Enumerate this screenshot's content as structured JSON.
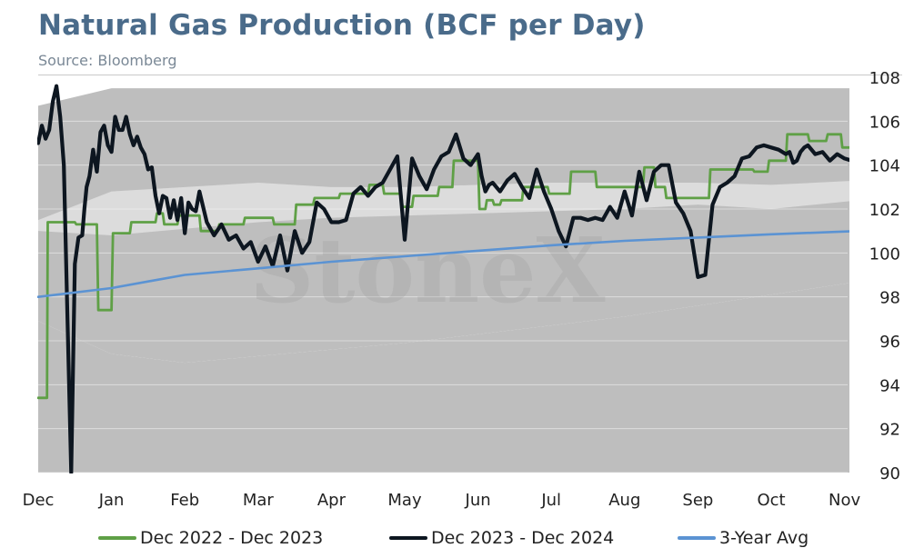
{
  "header": {
    "title": "Natural Gas Production (BCF per Day)",
    "subtitle": "Source: Bloomberg"
  },
  "watermark": {
    "text": "StoneX"
  },
  "legend": {
    "items": [
      {
        "label": "Dec 2022 - Dec 2023",
        "color": "#5fa046"
      },
      {
        "label": "Dec 2023 - Dec 2024",
        "color": "#0d1620"
      },
      {
        "label": "3-Year Avg",
        "color": "#5b93d3"
      }
    ]
  },
  "chart_data": {
    "type": "line",
    "title": "Natural Gas Production (BCF per Day)",
    "xlabel": "",
    "ylabel": "",
    "ylim": [
      90,
      108
    ],
    "yticks": [
      90,
      92,
      94,
      96,
      98,
      100,
      102,
      104,
      106,
      108
    ],
    "y_axis_position": "right",
    "x_categories": [
      "Dec",
      "Jan",
      "Feb",
      "Mar",
      "Apr",
      "May",
      "Jun",
      "Jul",
      "Aug",
      "Sep",
      "Oct",
      "Nov"
    ],
    "grid": true,
    "legend_position": "bottom",
    "bands": {
      "outer_color": "#bebebe",
      "inner_color": "#dcdcdc",
      "x": [
        0,
        1,
        2,
        3,
        4,
        5,
        6,
        7,
        8,
        9,
        10,
        11.2
      ],
      "outer_upper": [
        106.7,
        107.5,
        107.5,
        107.5,
        107.5,
        107.5,
        107.5,
        107.5,
        107.5,
        107.5,
        107.5,
        107.5
      ],
      "inner_upper": [
        101.5,
        102.8,
        103.0,
        103.2,
        103.0,
        103.0,
        103.1,
        103.2,
        103.2,
        103.2,
        103.1,
        103.3
      ],
      "inner_lower": [
        101.0,
        100.8,
        101.1,
        101.4,
        101.6,
        101.7,
        101.8,
        101.9,
        102.0,
        102.2,
        102.0,
        102.4
      ],
      "outer_lower": [
        96.9,
        95.4,
        95.0,
        95.3,
        95.6,
        95.9,
        96.3,
        96.7,
        97.1,
        97.6,
        98.1,
        98.7
      ]
    },
    "series": [
      {
        "name": "Dec 2022 - Dec 2023",
        "color": "#5fa046",
        "x": [
          0,
          0.12,
          0.13,
          0.5,
          0.52,
          0.8,
          0.82,
          1.0,
          1.02,
          1.25,
          1.27,
          1.6,
          1.62,
          1.7,
          1.72,
          1.9,
          1.92,
          2.2,
          2.22,
          2.45,
          2.47,
          2.8,
          2.82,
          3.2,
          3.22,
          3.5,
          3.52,
          3.75,
          3.77,
          4.1,
          4.12,
          4.5,
          4.52,
          4.7,
          4.72,
          4.95,
          4.97,
          5.1,
          5.12,
          5.45,
          5.47,
          5.65,
          5.67,
          6.0,
          6.02,
          6.1,
          6.12,
          6.2,
          6.22,
          6.3,
          6.32,
          6.6,
          6.62,
          6.95,
          6.97,
          7.25,
          7.27,
          7.6,
          7.62,
          7.8,
          7.82,
          8.25,
          8.27,
          8.4,
          8.42,
          8.55,
          8.57,
          8.95,
          8.97,
          9.15,
          9.17,
          9.45,
          9.47,
          9.75,
          9.77,
          9.95,
          9.97,
          10.2,
          10.22,
          10.5,
          10.52,
          10.75,
          10.77,
          10.95,
          10.97,
          11.15,
          11.17,
          11.2
        ],
        "values": [
          93.4,
          93.4,
          101.4,
          101.4,
          101.3,
          101.3,
          97.4,
          97.4,
          100.9,
          100.9,
          101.4,
          101.4,
          101.8,
          101.8,
          101.3,
          101.3,
          101.7,
          101.7,
          101.0,
          101.0,
          101.3,
          101.3,
          101.6,
          101.6,
          101.3,
          101.3,
          102.2,
          102.2,
          102.5,
          102.5,
          102.7,
          102.7,
          103.1,
          103.1,
          102.7,
          102.7,
          102.1,
          102.1,
          102.6,
          102.6,
          103.0,
          103.0,
          104.2,
          104.2,
          102.0,
          102.0,
          102.4,
          102.4,
          102.2,
          102.2,
          102.4,
          102.4,
          103.0,
          103.0,
          102.7,
          102.7,
          103.7,
          103.7,
          103.0,
          103.0,
          103.0,
          103.0,
          103.9,
          103.9,
          103.0,
          103.0,
          102.5,
          102.5,
          102.5,
          102.5,
          103.8,
          103.8,
          103.8,
          103.8,
          103.7,
          103.7,
          104.2,
          104.2,
          105.4,
          105.4,
          105.1,
          105.1,
          105.4,
          105.4,
          104.8,
          104.8,
          105.5,
          105.5
        ]
      },
      {
        "name": "Dec 2023 - Dec 2024",
        "color": "#0d1620",
        "x": [
          0,
          0.05,
          0.1,
          0.15,
          0.2,
          0.25,
          0.3,
          0.35,
          0.4,
          0.45,
          0.5,
          0.55,
          0.6,
          0.63,
          0.66,
          0.7,
          0.75,
          0.8,
          0.85,
          0.9,
          0.95,
          1.0,
          1.05,
          1.1,
          1.15,
          1.2,
          1.25,
          1.3,
          1.35,
          1.4,
          1.45,
          1.5,
          1.55,
          1.6,
          1.65,
          1.7,
          1.75,
          1.8,
          1.85,
          1.9,
          1.95,
          2.0,
          2.05,
          2.1,
          2.15,
          2.2,
          2.3,
          2.4,
          2.5,
          2.6,
          2.7,
          2.8,
          2.9,
          3.0,
          3.1,
          3.2,
          3.3,
          3.4,
          3.5,
          3.6,
          3.7,
          3.8,
          3.9,
          4.0,
          4.1,
          4.2,
          4.3,
          4.4,
          4.5,
          4.6,
          4.7,
          4.8,
          4.9,
          5.0,
          5.1,
          5.2,
          5.3,
          5.4,
          5.5,
          5.6,
          5.7,
          5.8,
          5.9,
          6.0,
          6.05,
          6.1,
          6.15,
          6.2,
          6.3,
          6.4,
          6.5,
          6.6,
          6.7,
          6.8,
          6.9,
          7.0,
          7.1,
          7.2,
          7.3,
          7.4,
          7.5,
          7.6,
          7.7,
          7.8,
          7.9,
          8.0,
          8.1,
          8.2,
          8.3,
          8.4,
          8.5,
          8.6,
          8.7,
          8.8,
          8.9,
          9.0,
          9.1,
          9.2,
          9.3,
          9.4,
          9.5,
          9.6,
          9.7,
          9.8,
          9.9,
          10.0,
          10.1,
          10.2,
          10.25,
          10.3,
          10.35,
          10.4,
          10.45,
          10.5,
          10.6,
          10.7,
          10.8,
          10.9,
          11.0,
          11.1,
          11.2
        ],
        "values": [
          105.0,
          105.8,
          105.2,
          105.6,
          106.9,
          107.6,
          106.2,
          104.0,
          97.0,
          90.0,
          99.5,
          100.7,
          100.8,
          102.0,
          103.0,
          103.5,
          104.7,
          103.7,
          105.5,
          105.8,
          104.9,
          104.6,
          106.2,
          105.6,
          105.6,
          106.2,
          105.4,
          104.9,
          105.3,
          104.8,
          104.5,
          103.8,
          103.9,
          102.6,
          101.8,
          102.6,
          102.5,
          101.6,
          102.4,
          101.5,
          102.5,
          100.9,
          102.3,
          102.0,
          101.9,
          102.8,
          101.4,
          100.8,
          101.3,
          100.6,
          100.8,
          100.2,
          100.5,
          99.6,
          100.3,
          99.4,
          100.8,
          99.2,
          101.0,
          100.0,
          100.5,
          102.3,
          102.0,
          101.4,
          101.4,
          101.5,
          102.7,
          103.0,
          102.6,
          103.0,
          103.2,
          103.8,
          104.4,
          100.6,
          104.3,
          103.5,
          102.9,
          103.8,
          104.4,
          104.6,
          105.4,
          104.3,
          104.0,
          104.5,
          103.5,
          102.8,
          103.1,
          103.2,
          102.8,
          103.3,
          103.6,
          103.0,
          102.5,
          103.8,
          102.8,
          102.0,
          101.0,
          100.3,
          101.6,
          101.6,
          101.5,
          101.6,
          101.5,
          102.1,
          101.6,
          102.8,
          101.7,
          103.7,
          102.4,
          103.7,
          104.0,
          104.0,
          102.3,
          101.8,
          101.0,
          98.9,
          99.0,
          102.2,
          103.0,
          103.2,
          103.5,
          104.3,
          104.4,
          104.8,
          104.9,
          104.8,
          104.7,
          104.5,
          104.6,
          104.1,
          104.2,
          104.6,
          104.8,
          104.9,
          104.5,
          104.6,
          104.2,
          104.5,
          104.3,
          104.2,
          104.1
        ]
      },
      {
        "name": "3-Year Avg",
        "color": "#5b93d3",
        "x": [
          0,
          1,
          1.5,
          2,
          3,
          4,
          5,
          6,
          7,
          8,
          9,
          10,
          11.2
        ],
        "values": [
          98.0,
          98.4,
          98.7,
          99.0,
          99.3,
          99.6,
          99.85,
          100.1,
          100.35,
          100.55,
          100.7,
          100.85,
          101.0
        ]
      }
    ]
  }
}
